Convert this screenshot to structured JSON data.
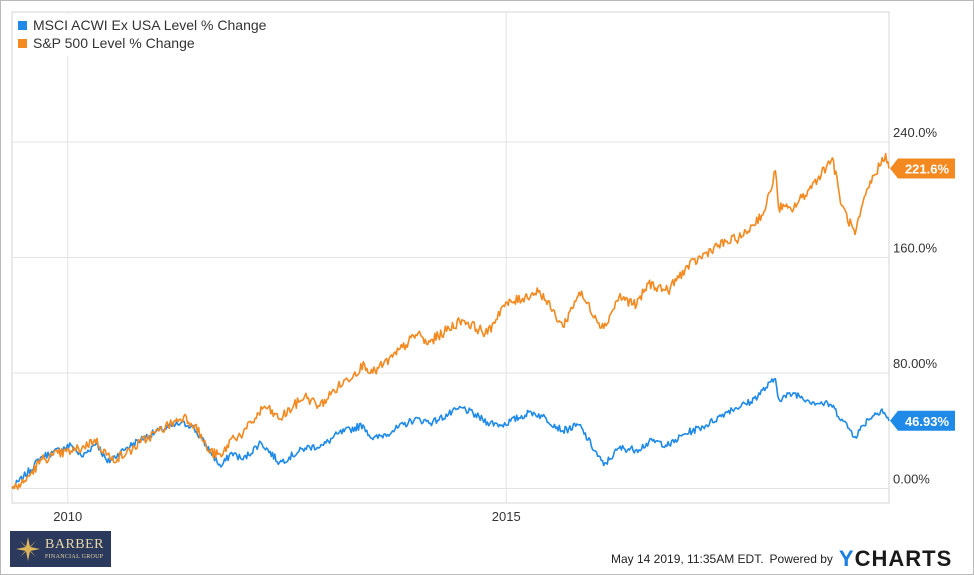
{
  "chart_data": {
    "type": "line",
    "title": "",
    "xlabel": "",
    "ylabel": "",
    "x_ticks": [
      "2010",
      "2015"
    ],
    "x_range": [
      "2009-05-14",
      "2019-05-14"
    ],
    "y_ticks": [
      "0.00%",
      "80.00%",
      "160.0%",
      "240.0%"
    ],
    "y_range": [
      -10,
      330
    ],
    "grid": true,
    "legend_position": "top-left",
    "series": [
      {
        "name": "MSCI ACWI Ex USA Level % Change",
        "color": "#1f8ae8",
        "end_label": "46.93%",
        "points": [
          [
            "2009-05-14",
            0
          ],
          [
            "2009-07-01",
            8
          ],
          [
            "2009-09-15",
            22
          ],
          [
            "2009-11-01",
            25
          ],
          [
            "2010-01-15",
            30
          ],
          [
            "2010-03-01",
            22
          ],
          [
            "2010-05-01",
            32
          ],
          [
            "2010-06-15",
            18
          ],
          [
            "2010-09-01",
            28
          ],
          [
            "2010-11-01",
            34
          ],
          [
            "2011-01-15",
            40
          ],
          [
            "2011-04-15",
            45
          ],
          [
            "2011-06-01",
            44
          ],
          [
            "2011-08-20",
            25
          ],
          [
            "2011-10-01",
            15
          ],
          [
            "2011-11-15",
            25
          ],
          [
            "2012-01-01",
            20
          ],
          [
            "2012-03-15",
            32
          ],
          [
            "2012-06-01",
            18
          ],
          [
            "2012-09-15",
            28
          ],
          [
            "2012-12-01",
            30
          ],
          [
            "2013-02-01",
            38
          ],
          [
            "2013-05-15",
            44
          ],
          [
            "2013-06-25",
            34
          ],
          [
            "2013-09-15",
            40
          ],
          [
            "2013-12-15",
            48
          ],
          [
            "2014-03-01",
            46
          ],
          [
            "2014-07-01",
            56
          ],
          [
            "2014-10-15",
            46
          ],
          [
            "2014-12-15",
            44
          ],
          [
            "2015-04-15",
            53
          ],
          [
            "2015-06-01",
            50
          ],
          [
            "2015-08-25",
            40
          ],
          [
            "2015-11-01",
            44
          ],
          [
            "2016-02-11",
            16
          ],
          [
            "2016-04-15",
            28
          ],
          [
            "2016-06-27",
            27
          ],
          [
            "2016-09-01",
            33
          ],
          [
            "2016-11-10",
            30
          ],
          [
            "2017-01-15",
            38
          ],
          [
            "2017-04-15",
            44
          ],
          [
            "2017-07-15",
            54
          ],
          [
            "2017-10-15",
            60
          ],
          [
            "2018-01-26",
            76
          ],
          [
            "2018-02-09",
            62
          ],
          [
            "2018-04-15",
            66
          ],
          [
            "2018-06-30",
            60
          ],
          [
            "2018-09-15",
            58
          ],
          [
            "2018-10-30",
            48
          ],
          [
            "2018-12-24",
            36
          ],
          [
            "2019-02-15",
            48
          ],
          [
            "2019-04-15",
            55
          ],
          [
            "2019-05-14",
            46.93
          ]
        ]
      },
      {
        "name": "S&P 500 Level % Change",
        "color": "#f3891f",
        "end_label": "221.6%",
        "points": [
          [
            "2009-05-14",
            0
          ],
          [
            "2009-07-01",
            4
          ],
          [
            "2009-09-15",
            20
          ],
          [
            "2009-11-01",
            23
          ],
          [
            "2010-01-15",
            26
          ],
          [
            "2010-03-01",
            28
          ],
          [
            "2010-04-23",
            34
          ],
          [
            "2010-07-01",
            20
          ],
          [
            "2010-09-01",
            24
          ],
          [
            "2010-11-01",
            32
          ],
          [
            "2011-01-15",
            40
          ],
          [
            "2011-04-29",
            50
          ],
          [
            "2011-06-15",
            44
          ],
          [
            "2011-08-10",
            26
          ],
          [
            "2011-10-03",
            22
          ],
          [
            "2011-11-15",
            35
          ],
          [
            "2012-01-01",
            38
          ],
          [
            "2012-03-31",
            57
          ],
          [
            "2012-06-01",
            48
          ],
          [
            "2012-09-14",
            64
          ],
          [
            "2012-11-15",
            57
          ],
          [
            "2013-01-15",
            68
          ],
          [
            "2013-05-21",
            86
          ],
          [
            "2013-06-24",
            80
          ],
          [
            "2013-09-15",
            91
          ],
          [
            "2013-12-31",
            108
          ],
          [
            "2014-02-03",
            100
          ],
          [
            "2014-07-01",
            117
          ],
          [
            "2014-10-15",
            107
          ],
          [
            "2014-12-15",
            126
          ],
          [
            "2015-05-20",
            137
          ],
          [
            "2015-08-25",
            112
          ],
          [
            "2015-11-01",
            136
          ],
          [
            "2016-02-11",
            111
          ],
          [
            "2016-04-15",
            133
          ],
          [
            "2016-06-27",
            127
          ],
          [
            "2016-08-15",
            142
          ],
          [
            "2016-11-04",
            137
          ],
          [
            "2017-01-15",
            152
          ],
          [
            "2017-05-15",
            167
          ],
          [
            "2017-09-15",
            175
          ],
          [
            "2017-12-15",
            193
          ],
          [
            "2018-01-26",
            220
          ],
          [
            "2018-02-08",
            195
          ],
          [
            "2018-04-02",
            193
          ],
          [
            "2018-06-15",
            207
          ],
          [
            "2018-09-20",
            229
          ],
          [
            "2018-10-29",
            196
          ],
          [
            "2018-12-24",
            176
          ],
          [
            "2019-02-15",
            208
          ],
          [
            "2019-04-30",
            232
          ],
          [
            "2019-05-14",
            221.6
          ]
        ]
      }
    ]
  },
  "footer": {
    "timestamp": "May 14 2019, 11:35AM EDT.",
    "powered_by": "Powered by",
    "brand_y": "Y",
    "brand_rest": "CHARTS"
  },
  "logo": {
    "name": "BARBER",
    "subtitle": "FINANCIAL GROUP"
  }
}
